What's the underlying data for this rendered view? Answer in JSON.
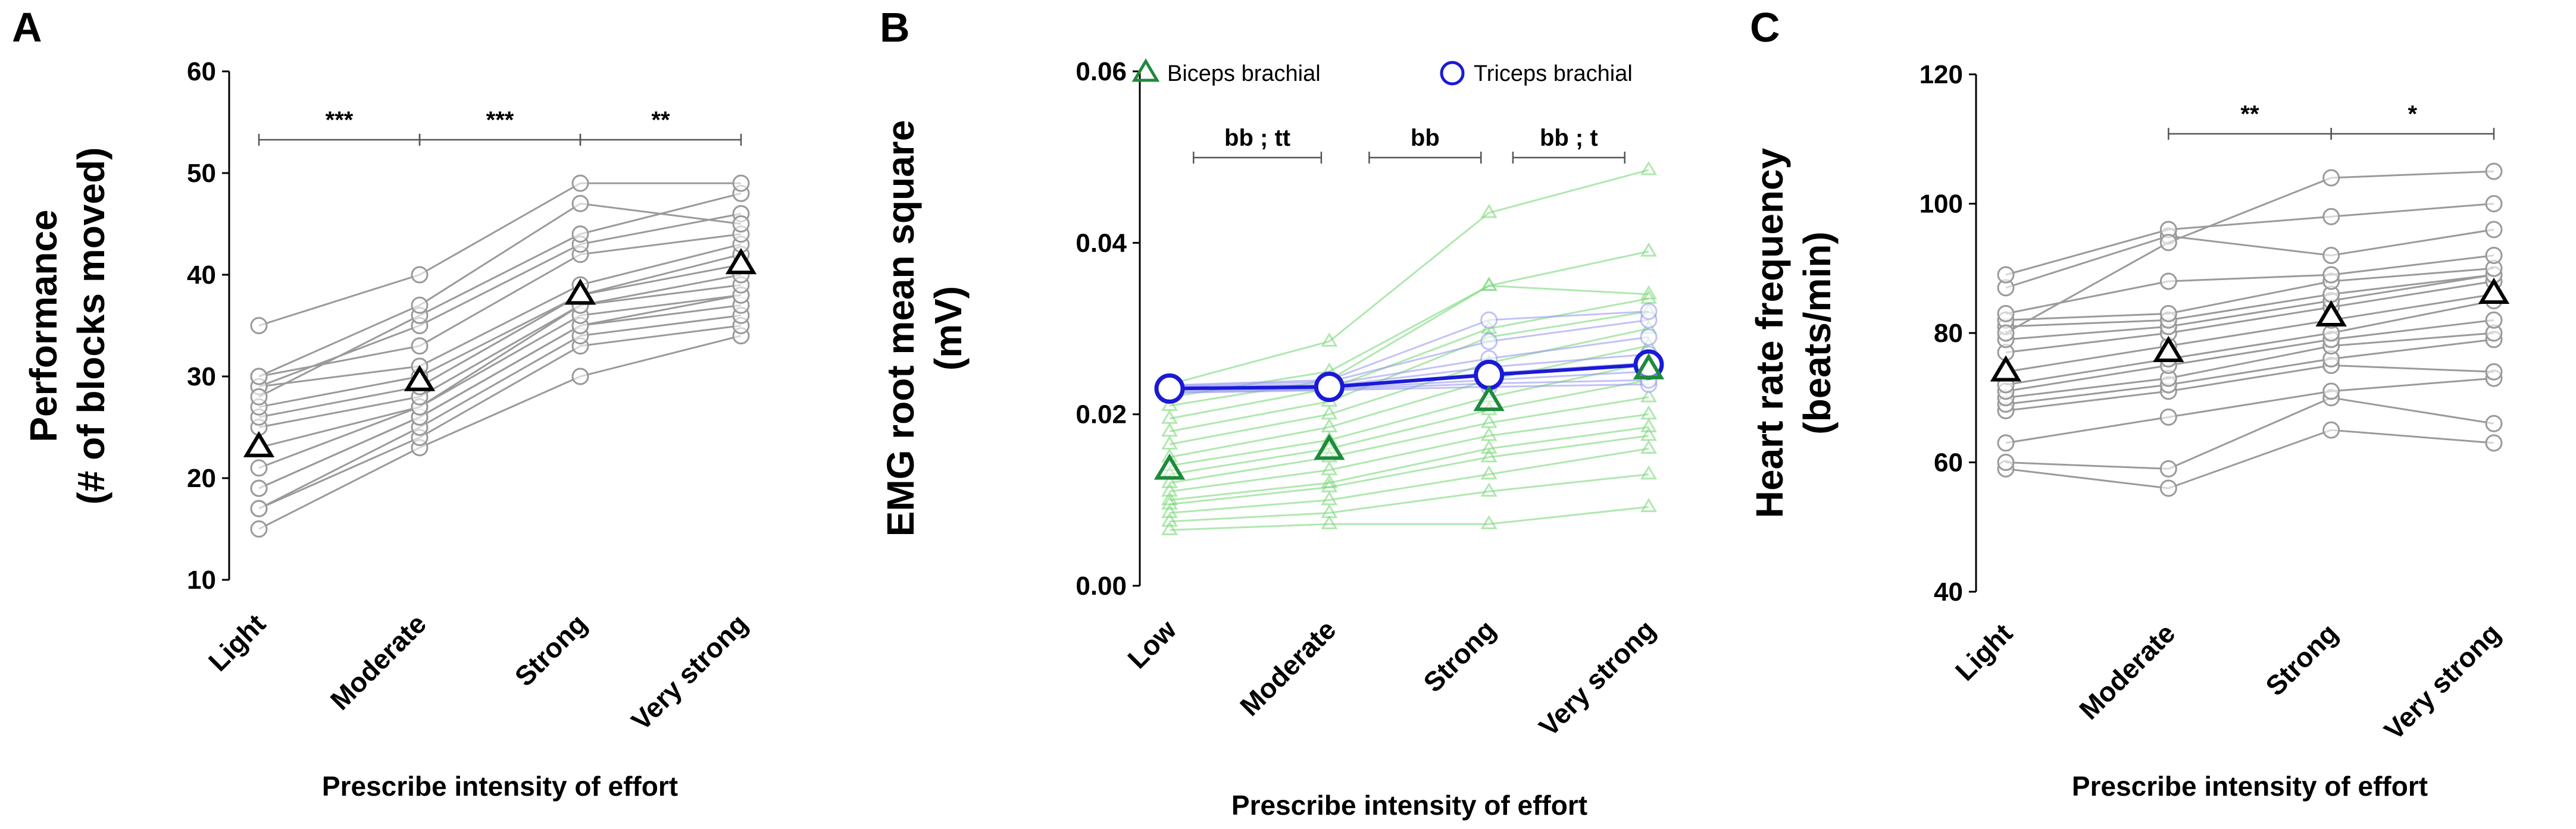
{
  "chart_data": [
    {
      "panel": "A",
      "type": "line",
      "xlabel": "Prescribe intensity of effort",
      "ylabel": [
        "Performance",
        "(# of blocks moved)"
      ],
      "categories": [
        "Light",
        "Moderate",
        "Strong",
        "Very strong"
      ],
      "ylim": [
        10,
        60
      ],
      "yticks": [
        10,
        20,
        30,
        40,
        50,
        60
      ],
      "subjects": [
        [
          15,
          23,
          30,
          34
        ],
        [
          17,
          24,
          33,
          35
        ],
        [
          17,
          25,
          34,
          36
        ],
        [
          19,
          26,
          35,
          37
        ],
        [
          19,
          26,
          35,
          38
        ],
        [
          21,
          27,
          36,
          38
        ],
        [
          23,
          27,
          37,
          39
        ],
        [
          25,
          28,
          37,
          40
        ],
        [
          26,
          29,
          38,
          41
        ],
        [
          27,
          30,
          38,
          42
        ],
        [
          29,
          31,
          39,
          43
        ],
        [
          30,
          33,
          42,
          44
        ],
        [
          29,
          35,
          43,
          46
        ],
        [
          28,
          36,
          44,
          48
        ],
        [
          30,
          37,
          47,
          45
        ],
        [
          35,
          40,
          49,
          49
        ]
      ],
      "mean": [
        23,
        29.5,
        38,
        41
      ],
      "subject_color": "#9a9a9a",
      "mean_color": "#000000",
      "significance": [
        {
          "from": 0,
          "to": 1,
          "label": "***"
        },
        {
          "from": 1,
          "to": 2,
          "label": "***"
        },
        {
          "from": 2,
          "to": 3,
          "label": "**"
        }
      ]
    },
    {
      "panel": "B",
      "type": "line",
      "xlabel": "Prescribe intensity of effort",
      "ylabel": [
        "EMG root mean square",
        "(mV)"
      ],
      "categories": [
        "Low",
        "Moderate",
        "Strong",
        "Very strong"
      ],
      "ylim": [
        0,
        0.06
      ],
      "yticks": [
        "0.00",
        "0.02",
        "0.04",
        "0.06"
      ],
      "legend": [
        {
          "label": "Biceps brachial",
          "marker": "triangle",
          "color": "#1e8a3c"
        },
        {
          "label": "Triceps brachial",
          "marker": "circle",
          "color": "#1a1ad6"
        }
      ],
      "series": [
        {
          "name": "Biceps brachial",
          "subject_color": "#79d979",
          "mean_color": "#1e8a3c",
          "subjects": [
            [
              0.0065,
              0.0072,
              0.0072,
              0.0092
            ],
            [
              0.0075,
              0.0085,
              0.011,
              0.013
            ],
            [
              0.0085,
              0.01,
              0.013,
              0.016
            ],
            [
              0.0095,
              0.0115,
              0.015,
              0.0175
            ],
            [
              0.01,
              0.012,
              0.016,
              0.0185
            ],
            [
              0.011,
              0.0135,
              0.0175,
              0.02
            ],
            [
              0.012,
              0.015,
              0.019,
              0.022
            ],
            [
              0.013,
              0.016,
              0.0205,
              0.024
            ],
            [
              0.014,
              0.017,
              0.022,
              0.026
            ],
            [
              0.015,
              0.0185,
              0.024,
              0.028
            ],
            [
              0.0165,
              0.02,
              0.026,
              0.03
            ],
            [
              0.018,
              0.0215,
              0.029,
              0.032
            ],
            [
              0.0195,
              0.023,
              0.03,
              0.0335
            ],
            [
              0.021,
              0.024,
              0.035,
              0.034
            ],
            [
              0.022,
              0.025,
              0.035,
              0.039
            ],
            [
              0.0235,
              0.0285,
              0.0435,
              0.0485
            ]
          ],
          "mean": [
            0.0135,
            0.0158,
            0.0215,
            0.0252
          ]
        },
        {
          "name": "Triceps brachial",
          "subject_color": "#8f8ff0",
          "mean_color": "#1a1ad6",
          "subjects": [
            [
              0.0225,
              0.0228,
              0.0232,
              0.0235
            ],
            [
              0.0226,
              0.0229,
              0.0236,
              0.024
            ],
            [
              0.0228,
              0.023,
              0.024,
              0.025
            ],
            [
              0.023,
              0.0232,
              0.0248,
              0.026
            ],
            [
              0.0231,
              0.0233,
              0.0255,
              0.027
            ],
            [
              0.0232,
              0.0235,
              0.0265,
              0.029
            ],
            [
              0.0233,
              0.0238,
              0.0285,
              0.031
            ],
            [
              0.0234,
              0.024,
              0.031,
              0.032
            ]
          ],
          "mean": [
            0.023,
            0.0232,
            0.0246,
            0.0258
          ]
        }
      ],
      "significance": [
        {
          "from": 0.15,
          "to": 0.95,
          "label": "bb ; tt"
        },
        {
          "from": 1.25,
          "to": 1.95,
          "label": "bb"
        },
        {
          "from": 2.15,
          "to": 2.85,
          "label": "bb ; t"
        }
      ]
    },
    {
      "panel": "C",
      "type": "line",
      "xlabel": "Prescribe intensity of effort",
      "ylabel": [
        "Heart rate frequency",
        "(beats/min)"
      ],
      "categories": [
        "Light",
        "Moderate",
        "Strong",
        "Very strong"
      ],
      "ylim": [
        40,
        120
      ],
      "yticks": [
        40,
        60,
        80,
        100,
        120
      ],
      "subjects": [
        [
          59,
          56,
          65,
          63
        ],
        [
          60,
          59,
          70,
          66
        ],
        [
          63,
          67,
          71,
          73
        ],
        [
          68,
          71,
          75,
          74
        ],
        [
          69,
          72,
          76,
          79
        ],
        [
          70,
          73,
          78,
          80
        ],
        [
          71,
          75,
          79,
          82
        ],
        [
          72,
          76,
          80,
          85
        ],
        [
          74,
          78,
          82,
          86
        ],
        [
          77,
          80,
          84,
          88
        ],
        [
          79,
          81,
          85,
          89
        ],
        [
          81,
          82,
          86,
          89
        ],
        [
          82,
          83,
          88,
          90
        ],
        [
          83,
          88,
          89,
          92
        ],
        [
          87,
          95,
          92,
          96
        ],
        [
          89,
          96,
          98,
          100
        ],
        [
          80,
          94,
          104,
          105
        ]
      ],
      "mean": [
        74,
        77,
        82.5,
        86
      ],
      "subject_color": "#9a9a9a",
      "mean_color": "#000000",
      "significance": [
        {
          "from": 1,
          "to": 2,
          "label": "**"
        },
        {
          "from": 2,
          "to": 3,
          "label": "*"
        }
      ]
    }
  ]
}
